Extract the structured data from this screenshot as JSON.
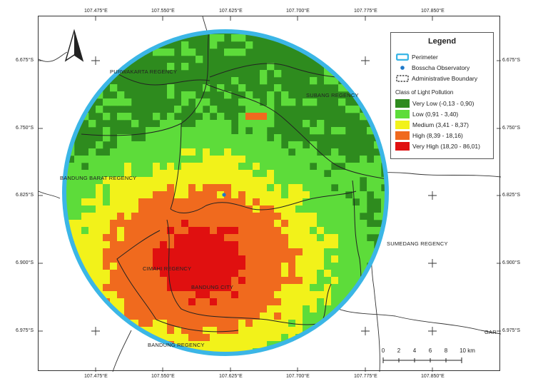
{
  "legend": {
    "title": "Legend",
    "perimeter_label": "Perimeter",
    "observatory_label": "Bosscha Observatory",
    "boundary_label": "Administrative Boundary",
    "class_title": "Class of Light Pollution",
    "classes": [
      {
        "label": "Very Low (-0,13 - 0,90)",
        "color": "#2e8b1e"
      },
      {
        "label": "Low (0,91 - 3,40)",
        "color": "#5ddc3a"
      },
      {
        "label": "Medium (3,41 - 8,37)",
        "color": "#f2f21a"
      },
      {
        "label": "High (8,39 - 18,16)",
        "color": "#f06a1e"
      },
      {
        "label": "Very High (18,20 - 86,01)",
        "color": "#e01010"
      }
    ]
  },
  "colors": {
    "perimeter": "#3bb6e6",
    "observatory": "#1f78c8",
    "boundary": "#222222"
  },
  "lon_labels": [
    "107.475°E",
    "107.550°E",
    "107.625°E",
    "107.700°E",
    "107.775°E",
    "107.850°E"
  ],
  "lat_labels": [
    "6.675°S",
    "6.750°S",
    "6.825°S",
    "6.900°S",
    "6.975°S"
  ],
  "regions": {
    "purwakarta": "PURWAKARTA REGENCY",
    "subang": "SUBANG REGENCY",
    "bandung_barat": "BANDUNG BARAT REGENCY",
    "sumedang": "SUMEDANG REGENCY",
    "cimahi": "CIMAHI REGENCY",
    "bandung_city": "BANDUNG CITY",
    "bandung_regency": "BANDUNG REGENCY",
    "garut": "GAR"
  },
  "scale": {
    "ticks": [
      "0",
      "2",
      "4",
      "6",
      "8",
      "10 km"
    ]
  },
  "north_arrow": "north-arrow-icon"
}
